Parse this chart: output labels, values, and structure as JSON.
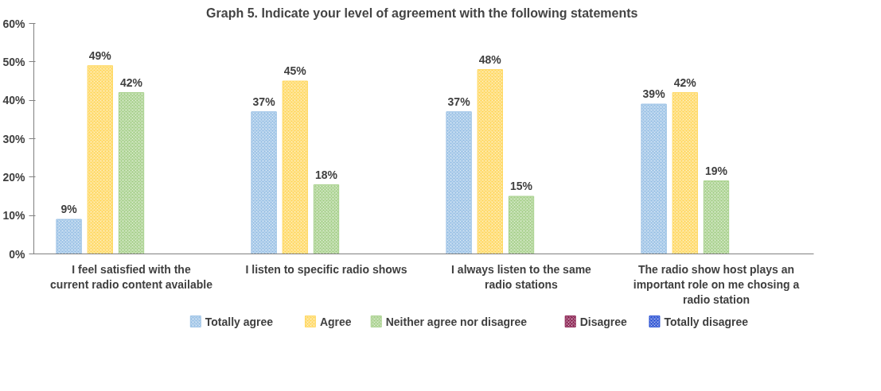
{
  "chart_data": {
    "type": "bar",
    "title": "Graph 5. Indicate your level of  agreement with the following statements",
    "categories": [
      "I feel satisfied with the current radio content available",
      "I listen to specific radio shows",
      "I always listen to the same radio stations",
      "The radio show host plays an important role on me chosing a radio station"
    ],
    "series": [
      {
        "name": "Totally agree",
        "color": "#9dc3e6",
        "values": [
          9,
          37,
          37,
          39
        ],
        "value_labels": [
          "9%",
          "37%",
          "37%",
          "39%"
        ]
      },
      {
        "name": "Agree",
        "color": "#ffd966",
        "values": [
          49,
          45,
          48,
          42
        ],
        "value_labels": [
          "49%",
          "45%",
          "48%",
          "42%"
        ]
      },
      {
        "name": "Neither agree nor disagree",
        "color": "#a9d18e",
        "values": [
          42,
          18,
          15,
          19
        ],
        "value_labels": [
          "42%",
          "18%",
          "15%",
          "19%"
        ]
      },
      {
        "name": "Disagree",
        "color": "#8b2252",
        "values": [
          null,
          null,
          null,
          null
        ]
      },
      {
        "name": "Totally disagree",
        "color": "#2f55d4",
        "values": [
          null,
          null,
          null,
          null
        ]
      }
    ],
    "ylim": [
      0,
      60
    ],
    "yticks": [
      {
        "value": 0,
        "label": "0%"
      },
      {
        "value": 10,
        "label": "10%"
      },
      {
        "value": 20,
        "label": "20%"
      },
      {
        "value": 30,
        "label": "30%"
      },
      {
        "value": 40,
        "label": "40%"
      },
      {
        "value": 50,
        "label": "50%"
      },
      {
        "value": 60,
        "label": "60%"
      }
    ],
    "grid": false,
    "legend": "bottom"
  }
}
